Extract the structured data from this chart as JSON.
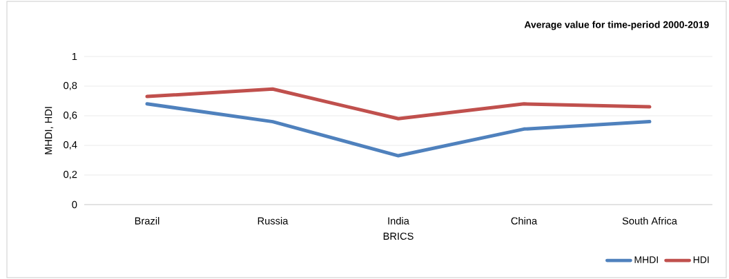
{
  "chart_data": {
    "type": "line",
    "title": "Average value for time-period 2000-2019",
    "xlabel": "BRICS",
    "ylabel": "MHDI, HDI",
    "categories": [
      "Brazil",
      "Russia",
      "India",
      "China",
      "South Africa"
    ],
    "series": [
      {
        "name": "MHDI",
        "color": "#4f81bd",
        "values": [
          0.68,
          0.56,
          0.33,
          0.51,
          0.56
        ]
      },
      {
        "name": "HDI",
        "color": "#c0504d",
        "values": [
          0.73,
          0.78,
          0.58,
          0.68,
          0.66
        ]
      }
    ],
    "ylim": [
      0,
      1
    ],
    "yticks": [
      {
        "value": 0,
        "label": "0"
      },
      {
        "value": 0.2,
        "label": "0,2"
      },
      {
        "value": 0.4,
        "label": "0,4"
      },
      {
        "value": 0.6,
        "label": "0,6"
      },
      {
        "value": 0.8,
        "label": "0,8"
      },
      {
        "value": 1,
        "label": "1"
      }
    ],
    "grid": "y",
    "legend": "bottom right",
    "marker": "none"
  }
}
